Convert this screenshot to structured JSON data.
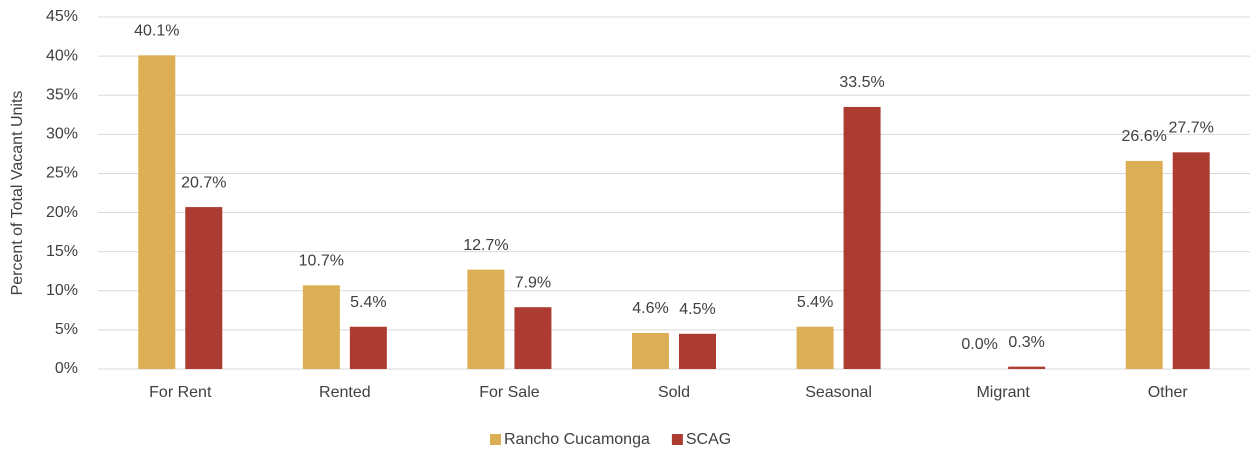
{
  "chart_data": {
    "type": "bar",
    "y_label": "Percent of Total Vacant Units",
    "categories": [
      "For Rent",
      "Rented",
      "For Sale",
      "Sold",
      "Seasonal",
      "Migrant",
      "Other"
    ],
    "series": [
      {
        "name": "Rancho Cucamonga",
        "color": "#dcae56",
        "values": [
          40.1,
          10.7,
          12.7,
          4.6,
          5.4,
          0.0,
          26.6
        ],
        "value_labels": [
          "40.1%",
          "10.7%",
          "12.7%",
          "4.6%",
          "5.4%",
          "0.0%",
          "26.6%"
        ]
      },
      {
        "name": "SCAG",
        "color": "#ac3b31",
        "values": [
          20.7,
          5.4,
          7.9,
          4.5,
          33.5,
          0.3,
          27.7
        ],
        "value_labels": [
          "20.7%",
          "5.4%",
          "7.9%",
          "4.5%",
          "33.5%",
          "0.3%",
          "27.7%"
        ]
      }
    ],
    "ylim": [
      0,
      45
    ],
    "yticks": [
      {
        "value": 0,
        "label": "0%"
      },
      {
        "value": 5,
        "label": "5%"
      },
      {
        "value": 10,
        "label": "10%"
      },
      {
        "value": 15,
        "label": "15%"
      },
      {
        "value": 20,
        "label": "20%"
      },
      {
        "value": 25,
        "label": "25%"
      },
      {
        "value": 30,
        "label": "30%"
      },
      {
        "value": 35,
        "label": "35%"
      },
      {
        "value": 40,
        "label": "40%"
      },
      {
        "value": 45,
        "label": "45%"
      }
    ],
    "grid": true,
    "legend": "bottom"
  }
}
